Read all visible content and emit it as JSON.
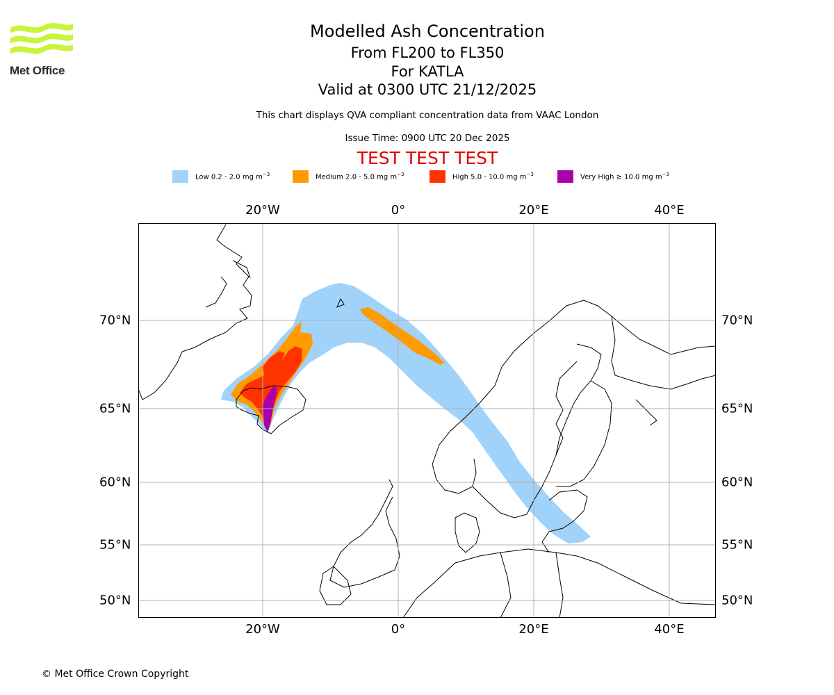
{
  "header": {
    "logo_text": "Met Office",
    "title": "Modelled Ash Concentration",
    "level_range": "From FL200 to FL350",
    "volcano": "For KATLA",
    "valid_time": "Valid at 0300 UTC 21/12/2025",
    "subtitle": "This chart displays QVA compliant concentration data from VAAC London",
    "issue_time": "Issue Time: 0900 UTC 20 Dec 2025",
    "test_banner": "TEST TEST TEST"
  },
  "legend": [
    {
      "label": "Low 0.2 - 2.0 mg m",
      "color": "#a0d2fa"
    },
    {
      "label": "Medium 2.0 - 5.0 mg m",
      "color": "#ff9b00"
    },
    {
      "label": "High 5.0 - 10.0 mg m",
      "color": "#ff3300"
    },
    {
      "label": "Very High  ≥  10.0 mg m",
      "color": "#aa00aa"
    }
  ],
  "legend_unit_exponent": "−3",
  "axes": {
    "longitude_labels": [
      "20°W",
      "0°",
      "20°E",
      "40°E"
    ],
    "latitude_labels": [
      "70°N",
      "65°N",
      "60°N",
      "55°N",
      "50°N"
    ]
  },
  "footer": {
    "copyright": "© Met Office Crown Copyright"
  },
  "colors": {
    "coast": "#000000",
    "grid": "#b0b0b0",
    "test": "#e00000"
  }
}
